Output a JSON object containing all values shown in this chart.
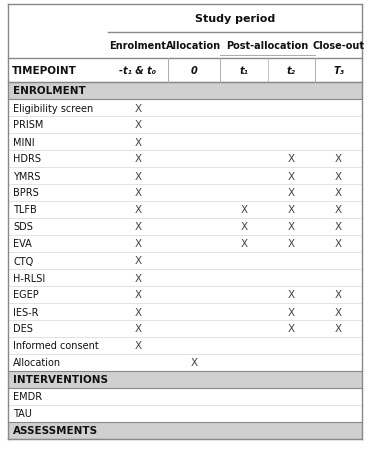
{
  "title": "Study period",
  "col_headers": [
    "Enrolment",
    "Allocation",
    "Post-allocation",
    "Close-out"
  ],
  "col_subheaders": [
    "-t₁ & t₀",
    "0",
    "t₁",
    "t₂",
    "T₃"
  ],
  "timepoint_label": "TIMEPOINT",
  "rows": [
    {
      "label": "ENROLMENT",
      "is_section": true,
      "marks": [
        0,
        0,
        0,
        0,
        0
      ]
    },
    {
      "label": "Eligibility screen",
      "is_section": false,
      "marks": [
        1,
        0,
        0,
        0,
        0
      ]
    },
    {
      "label": "PRISM",
      "is_section": false,
      "marks": [
        1,
        0,
        0,
        0,
        0
      ]
    },
    {
      "label": "MINI",
      "is_section": false,
      "marks": [
        1,
        0,
        0,
        0,
        0
      ]
    },
    {
      "label": "HDRS",
      "is_section": false,
      "marks": [
        1,
        0,
        0,
        1,
        1
      ]
    },
    {
      "label": "YMRS",
      "is_section": false,
      "marks": [
        1,
        0,
        0,
        1,
        1
      ]
    },
    {
      "label": "BPRS",
      "is_section": false,
      "marks": [
        1,
        0,
        0,
        1,
        1
      ]
    },
    {
      "label": "TLFB",
      "is_section": false,
      "marks": [
        1,
        0,
        1,
        1,
        1
      ]
    },
    {
      "label": "SDS",
      "is_section": false,
      "marks": [
        1,
        0,
        1,
        1,
        1
      ]
    },
    {
      "label": "EVA",
      "is_section": false,
      "marks": [
        1,
        0,
        1,
        1,
        1
      ]
    },
    {
      "label": "CTQ",
      "is_section": false,
      "marks": [
        1,
        0,
        0,
        0,
        0
      ]
    },
    {
      "label": "H-RLSI",
      "is_section": false,
      "marks": [
        1,
        0,
        0,
        0,
        0
      ]
    },
    {
      "label": "EGEP",
      "is_section": false,
      "marks": [
        1,
        0,
        0,
        1,
        1
      ]
    },
    {
      "label": "IES-R",
      "is_section": false,
      "marks": [
        1,
        0,
        0,
        1,
        1
      ]
    },
    {
      "label": "DES",
      "is_section": false,
      "marks": [
        1,
        0,
        0,
        1,
        1
      ]
    },
    {
      "label": "Informed consent",
      "is_section": false,
      "marks": [
        1,
        0,
        0,
        0,
        0
      ]
    },
    {
      "label": "Allocation",
      "is_section": false,
      "marks": [
        0,
        1,
        0,
        0,
        0
      ]
    },
    {
      "label": "INTERVENTIONS",
      "is_section": true,
      "marks": [
        0,
        0,
        0,
        0,
        0
      ]
    },
    {
      "label": "EMDR",
      "is_section": false,
      "marks": [
        0,
        0,
        0,
        0,
        0
      ]
    },
    {
      "label": "TAU",
      "is_section": false,
      "marks": [
        0,
        0,
        0,
        0,
        0
      ]
    },
    {
      "label": "ASSESSMENTS",
      "is_section": true,
      "marks": [
        0,
        0,
        0,
        0,
        0
      ]
    }
  ],
  "bg_color": "#ffffff",
  "section_bg": "#d0d0d0",
  "line_color": "#aaaaaa",
  "dark_line": "#555555"
}
